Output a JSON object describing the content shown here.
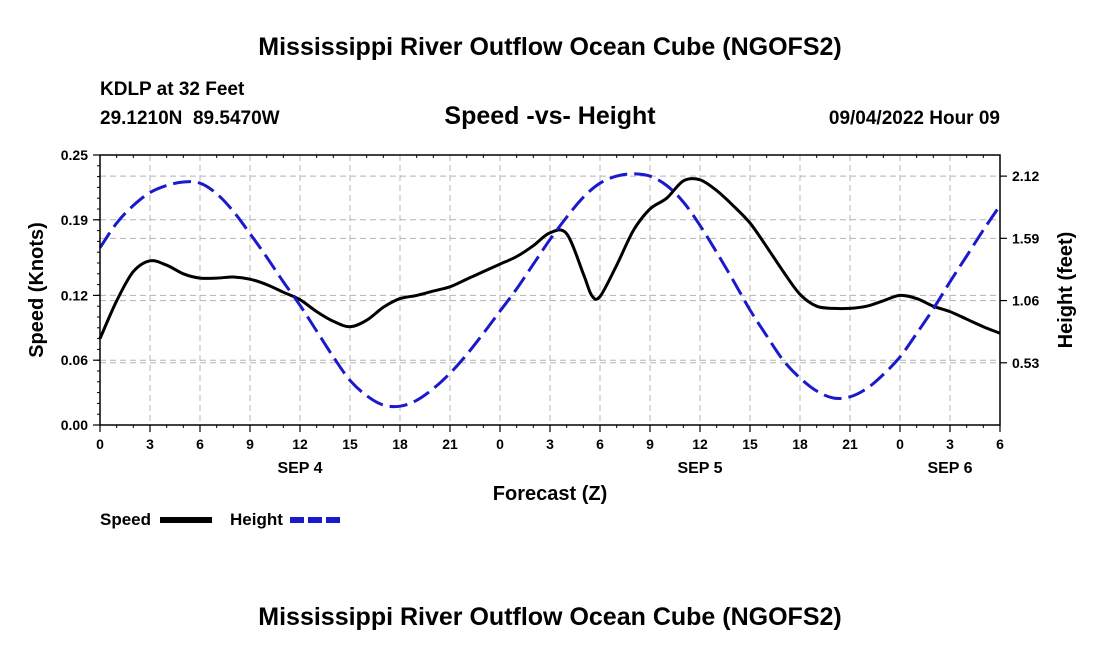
{
  "header": {
    "title": "Mississippi River Outflow Ocean Cube (NGOFS2)",
    "station": "KDLP at 32 Feet",
    "coords": "29.1210N  89.5470W",
    "subtitle": "Speed -vs- Height",
    "datetime": "09/04/2022 Hour 09",
    "footer_title": "Mississippi River Outflow Ocean Cube (NGOFS2)"
  },
  "legend": {
    "speed_label": "Speed",
    "height_label": "Height"
  },
  "colors": {
    "speed": "#000000",
    "height": "#1a1acc",
    "grid": "#b4b4b4"
  },
  "chart_data": {
    "type": "line",
    "title": "Speed -vs- Height",
    "xlabel": "Forecast (Z)",
    "ylabel": "Speed (Knots)",
    "ylabel_right": "Height (feet)",
    "xlim": [
      0,
      54
    ],
    "ylim": [
      0,
      0.25
    ],
    "ylim_right": [
      0,
      2.3
    ],
    "x_ticks": [
      0,
      3,
      6,
      9,
      12,
      15,
      18,
      21,
      24,
      27,
      30,
      33,
      36,
      39,
      42,
      45,
      48,
      51,
      54
    ],
    "x_tick_labels": [
      "0",
      "3",
      "6",
      "9",
      "12",
      "15",
      "18",
      "21",
      "0",
      "3",
      "6",
      "9",
      "12",
      "15",
      "18",
      "21",
      "0",
      "3",
      "6"
    ],
    "y_ticks": [
      0.0,
      0.06,
      0.12,
      0.19,
      0.25
    ],
    "y_tick_labels": [
      "0.00",
      "0.06",
      "0.12",
      "0.19",
      "0.25"
    ],
    "y_ticks_right": [
      0.53,
      1.06,
      1.59,
      2.12
    ],
    "y_tick_labels_right": [
      "0.53",
      "1.06",
      "1.59",
      "2.12"
    ],
    "day_labels": [
      {
        "x": 12,
        "label": "SEP 4"
      },
      {
        "x": 36,
        "label": "SEP 5"
      },
      {
        "x": 51,
        "label": "SEP 6"
      }
    ],
    "grid": true,
    "series": [
      {
        "name": "Speed",
        "axis": "left",
        "style": "solid",
        "x": [
          0,
          1,
          2,
          3,
          4,
          5,
          6,
          7,
          8,
          9,
          10,
          11,
          12,
          13,
          14,
          15,
          16,
          17,
          18,
          19,
          20,
          21,
          22,
          23,
          24,
          25,
          26,
          27,
          28,
          29,
          29.5,
          30,
          31,
          32,
          33,
          34,
          35,
          36,
          37,
          38,
          39,
          40,
          41,
          42,
          43,
          44,
          45,
          46,
          47,
          48,
          49,
          50,
          51,
          52,
          53,
          54
        ],
        "values": [
          0.08,
          0.115,
          0.142,
          0.152,
          0.148,
          0.14,
          0.136,
          0.136,
          0.137,
          0.135,
          0.13,
          0.123,
          0.116,
          0.105,
          0.096,
          0.091,
          0.097,
          0.109,
          0.117,
          0.12,
          0.124,
          0.128,
          0.135,
          0.142,
          0.149,
          0.156,
          0.166,
          0.178,
          0.177,
          0.14,
          0.12,
          0.119,
          0.148,
          0.18,
          0.2,
          0.21,
          0.226,
          0.227,
          0.217,
          0.203,
          0.187,
          0.165,
          0.142,
          0.121,
          0.11,
          0.108,
          0.108,
          0.11,
          0.115,
          0.12,
          0.117,
          0.11,
          0.105,
          0.098,
          0.091,
          0.085
        ]
      },
      {
        "name": "Height",
        "axis": "right",
        "style": "dashed",
        "x": [
          0,
          1,
          2,
          3,
          4,
          5,
          6,
          7,
          8,
          9,
          10,
          11,
          12,
          13,
          14,
          15,
          16,
          17,
          18,
          19,
          20,
          21,
          22,
          23,
          24,
          25,
          26,
          27,
          28,
          29,
          30,
          31,
          32,
          33,
          34,
          35,
          36,
          37,
          38,
          39,
          40,
          41,
          42,
          43,
          44,
          45,
          46,
          47,
          48,
          49,
          50,
          51,
          52,
          53,
          54
        ],
        "values": [
          1.51,
          1.72,
          1.87,
          1.98,
          2.04,
          2.07,
          2.06,
          1.97,
          1.82,
          1.63,
          1.43,
          1.22,
          1.02,
          0.8,
          0.58,
          0.38,
          0.25,
          0.17,
          0.16,
          0.21,
          0.31,
          0.44,
          0.6,
          0.78,
          0.97,
          1.16,
          1.37,
          1.58,
          1.77,
          1.94,
          2.06,
          2.12,
          2.14,
          2.12,
          2.04,
          1.9,
          1.7,
          1.47,
          1.23,
          0.98,
          0.76,
          0.55,
          0.4,
          0.29,
          0.23,
          0.24,
          0.31,
          0.43,
          0.58,
          0.78,
          0.99,
          1.22,
          1.44,
          1.66,
          1.87
        ]
      }
    ]
  }
}
